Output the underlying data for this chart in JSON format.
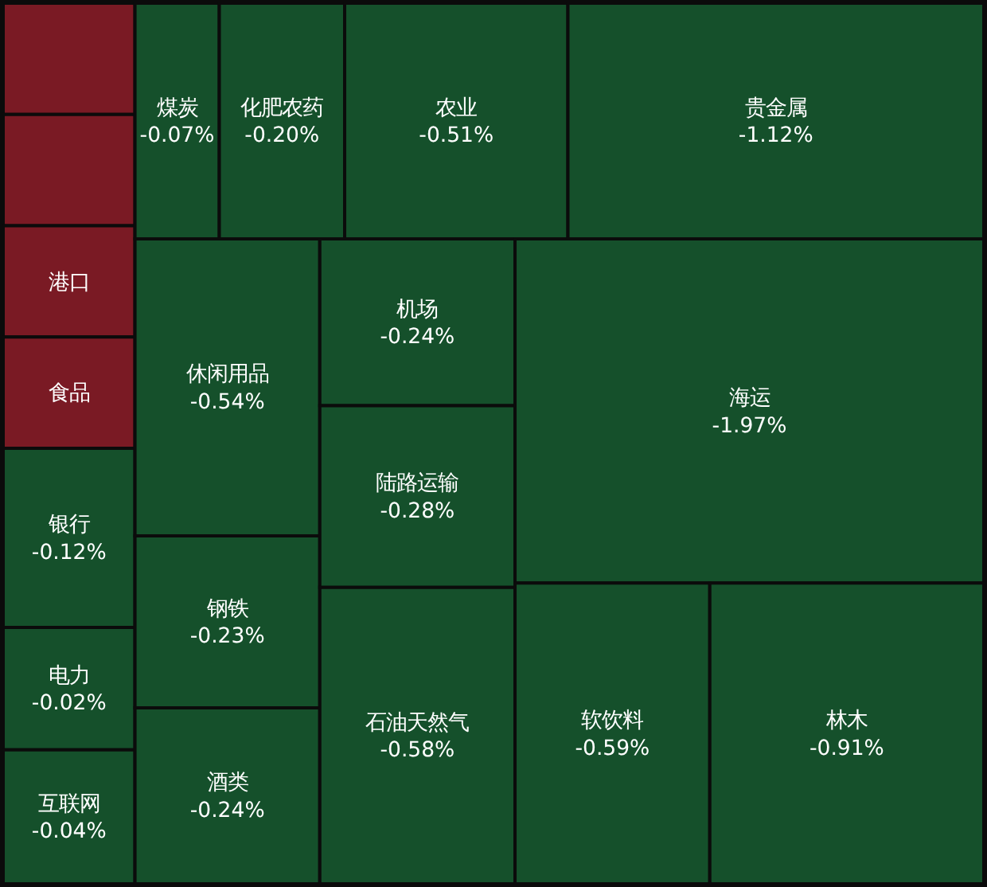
{
  "chart_data": {
    "type": "other",
    "categories": [
      null,
      null,
      "港口",
      "食品",
      "银行",
      "电力",
      "互联网",
      "煤炭",
      "化肥农药",
      "农业",
      "贵金属",
      "休闲用品",
      "钢铁",
      "酒类",
      "机场",
      "陆路运输",
      "石油天然气",
      "海运",
      "软饮料",
      "林木"
    ],
    "values": [
      null,
      null,
      null,
      null,
      -0.12,
      -0.02,
      -0.04,
      -0.07,
      -0.2,
      -0.51,
      -1.12,
      -0.54,
      -0.23,
      -0.24,
      -0.24,
      -0.28,
      -0.58,
      -1.97,
      -0.59,
      -0.91
    ],
    "value_labels": [
      null,
      null,
      null,
      null,
      "-0.12%",
      "-0.02%",
      "-0.04%",
      "-0.07%",
      "-0.20%",
      "-0.51%",
      "-1.12%",
      "-0.54%",
      "-0.23%",
      "-0.24%",
      "-0.24%",
      "-0.28%",
      "-0.58%",
      "-1.97%",
      "-0.59%",
      "-0.91%"
    ],
    "colors": [
      "#7a1a24",
      "#7a1a24",
      "#7a1a24",
      "#7a1a24",
      "#15502b",
      "#15502b",
      "#15502b",
      "#15502b",
      "#15502b",
      "#15502b",
      "#15502b",
      "#15502b",
      "#15502b",
      "#15502b",
      "#15502b",
      "#15502b",
      "#15502b",
      "#15502b",
      "#15502b",
      "#15502b"
    ]
  }
}
